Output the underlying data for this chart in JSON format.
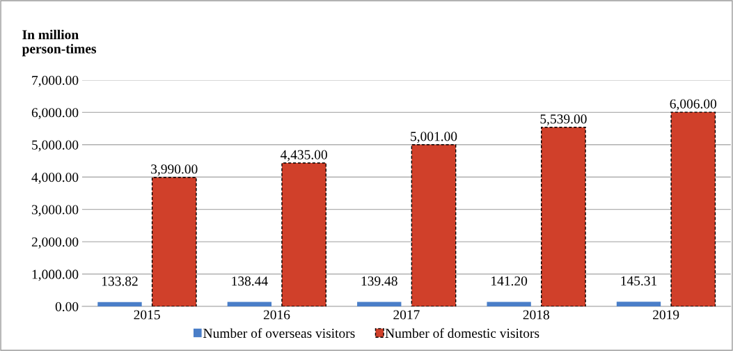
{
  "chart_data": {
    "type": "bar",
    "ylabel": "In million\nperson-times",
    "categories": [
      "2015",
      "2016",
      "2017",
      "2018",
      "2019"
    ],
    "series": [
      {
        "name": "Number of overseas visitors",
        "color": "#4a7ec8",
        "values": [
          133.82,
          138.44,
          139.48,
          141.2,
          145.31
        ],
        "value_labels": [
          "133.82",
          "138.44",
          "139.48",
          "141.20",
          "145.31"
        ]
      },
      {
        "name": "Number of domestic visitors",
        "color": "#d0402a",
        "values": [
          3990,
          4435,
          5001,
          5539,
          6006
        ],
        "value_labels": [
          "3,990.00",
          "4,435.00",
          "5,001.00",
          "5,539.00",
          "6,006.00"
        ]
      }
    ],
    "ylim": [
      0,
      7000
    ],
    "yticks": [
      {
        "value": 0,
        "label": "0.00"
      },
      {
        "value": 1000,
        "label": "1,000.00"
      },
      {
        "value": 2000,
        "label": "2,000.00"
      },
      {
        "value": 3000,
        "label": "3,000.00"
      },
      {
        "value": 4000,
        "label": "4,000.00"
      },
      {
        "value": 5000,
        "label": "5,000.00"
      },
      {
        "value": 6000,
        "label": "6,000.00"
      },
      {
        "value": 7000,
        "label": "7,000.00"
      }
    ],
    "grid": "y",
    "legend": "bottom"
  }
}
